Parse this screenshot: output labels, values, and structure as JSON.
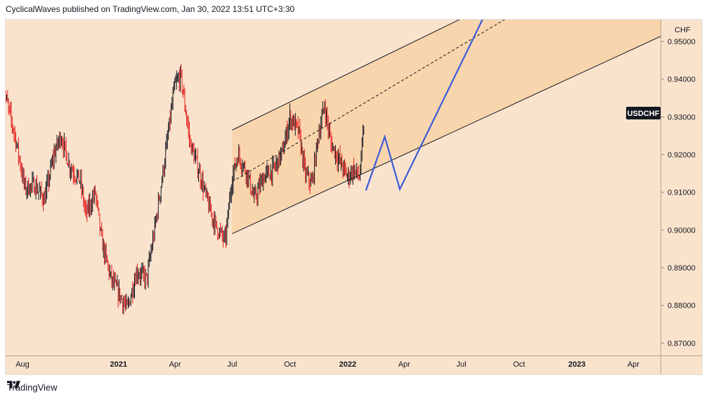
{
  "header": {
    "caption": "CyclicalWaves published on TradingView.com, Jan 30, 2022 13:51 UTC+3:30"
  },
  "footer": {
    "brand": "TradingView",
    "logo_icon": "tradingview-logo-icon"
  },
  "colors": {
    "background": "#fae3cc",
    "channel_fill": "#f9d5ad",
    "up_candle": "#131722",
    "down_candle": "#e21d1d",
    "projection": "#3a5bd9",
    "channel_line": "#131722",
    "price_tag_bg": "#131722",
    "price_tag_text": "#ffffff"
  },
  "chart_data": {
    "type": "candlestick",
    "symbol": "USDCHF",
    "price_tag": "USDCHF",
    "currency_label": "CHF",
    "y_ticks": [
      "0.95000",
      "0.94000",
      "0.93000",
      "0.92000",
      "0.91000",
      "0.90000",
      "0.89000",
      "0.88000",
      "0.87000"
    ],
    "y_tick_values": [
      0.95,
      0.94,
      0.93,
      0.92,
      0.91,
      0.9,
      0.89,
      0.88,
      0.87
    ],
    "x_ticks": [
      "Aug",
      "2021",
      "Apr",
      "Jul",
      "Oct",
      "2022",
      "Apr",
      "Jul",
      "Oct",
      "2023",
      "Apr"
    ],
    "x_tick_dates": [
      "2020-08-01",
      "2021-01-01",
      "2021-04-01",
      "2021-07-01",
      "2021-10-01",
      "2022-01-01",
      "2022-04-01",
      "2022-07-01",
      "2022-10-01",
      "2023-01-01",
      "2023-04-01"
    ],
    "bold_x_ticks": [
      "2021",
      "2022",
      "2023"
    ],
    "price_path": [
      {
        "date": "2020-07-01",
        "close": 0.938
      },
      {
        "date": "2020-07-20",
        "close": 0.925
      },
      {
        "date": "2020-08-05",
        "close": 0.911
      },
      {
        "date": "2020-08-20",
        "close": 0.912
      },
      {
        "date": "2020-09-05",
        "close": 0.908
      },
      {
        "date": "2020-09-20",
        "close": 0.92
      },
      {
        "date": "2020-10-01",
        "close": 0.925
      },
      {
        "date": "2020-10-15",
        "close": 0.917
      },
      {
        "date": "2020-11-01",
        "close": 0.913
      },
      {
        "date": "2020-11-10",
        "close": 0.904
      },
      {
        "date": "2020-11-25",
        "close": 0.91
      },
      {
        "date": "2020-12-05",
        "close": 0.897
      },
      {
        "date": "2020-12-20",
        "close": 0.887
      },
      {
        "date": "2021-01-05",
        "close": 0.882
      },
      {
        "date": "2021-01-15",
        "close": 0.879
      },
      {
        "date": "2021-01-30",
        "close": 0.889
      },
      {
        "date": "2021-02-15",
        "close": 0.887
      },
      {
        "date": "2021-03-01",
        "close": 0.902
      },
      {
        "date": "2021-03-15",
        "close": 0.918
      },
      {
        "date": "2021-03-31",
        "close": 0.938
      },
      {
        "date": "2021-04-10",
        "close": 0.941
      },
      {
        "date": "2021-04-25",
        "close": 0.923
      },
      {
        "date": "2021-05-10",
        "close": 0.915
      },
      {
        "date": "2021-05-25",
        "close": 0.906
      },
      {
        "date": "2021-06-05",
        "close": 0.901
      },
      {
        "date": "2021-06-20",
        "close": 0.897
      },
      {
        "date": "2021-06-30",
        "close": 0.913
      },
      {
        "date": "2021-07-10",
        "close": 0.92
      },
      {
        "date": "2021-07-25",
        "close": 0.915
      },
      {
        "date": "2021-08-05",
        "close": 0.908
      },
      {
        "date": "2021-08-20",
        "close": 0.914
      },
      {
        "date": "2021-09-05",
        "close": 0.916
      },
      {
        "date": "2021-09-20",
        "close": 0.921
      },
      {
        "date": "2021-10-01",
        "close": 0.93
      },
      {
        "date": "2021-10-15",
        "close": 0.926
      },
      {
        "date": "2021-10-25",
        "close": 0.915
      },
      {
        "date": "2021-11-05",
        "close": 0.912
      },
      {
        "date": "2021-11-15",
        "close": 0.925
      },
      {
        "date": "2021-11-25",
        "close": 0.933
      },
      {
        "date": "2021-12-05",
        "close": 0.923
      },
      {
        "date": "2021-12-20",
        "close": 0.918
      },
      {
        "date": "2022-01-01",
        "close": 0.914
      },
      {
        "date": "2022-01-10",
        "close": 0.916
      },
      {
        "date": "2022-01-20",
        "close": 0.914
      },
      {
        "date": "2022-01-28",
        "close": 0.93
      }
    ],
    "channel": {
      "upper": [
        {
          "date": "2021-07-01",
          "price": 0.9265
        },
        {
          "date": "2022-07-25",
          "price": 0.958
        }
      ],
      "middle": [
        {
          "date": "2021-07-01",
          "price": 0.9128
        },
        {
          "date": "2022-09-30",
          "price": 0.958
        }
      ],
      "lower": [
        {
          "date": "2021-07-01",
          "price": 0.899
        },
        {
          "date": "2023-05-15",
          "price": 0.9514
        }
      ]
    },
    "projection": [
      {
        "date": "2022-01-30",
        "price": 0.9105
      },
      {
        "date": "2022-03-01",
        "price": 0.9247
      },
      {
        "date": "2022-03-25",
        "price": 0.9108
      },
      {
        "date": "2022-08-10",
        "price": 0.958
      }
    ]
  }
}
